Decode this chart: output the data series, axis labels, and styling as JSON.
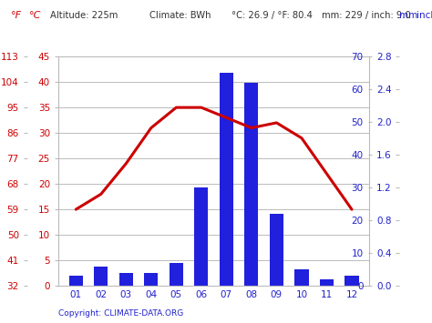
{
  "months": [
    "01",
    "02",
    "03",
    "04",
    "05",
    "06",
    "07",
    "08",
    "09",
    "10",
    "11",
    "12"
  ],
  "precip_mm": [
    3,
    6,
    4,
    4,
    7,
    30,
    65,
    62,
    22,
    5,
    2,
    3
  ],
  "temp_c": [
    15,
    18,
    24,
    31,
    35,
    35,
    33,
    31,
    32,
    29,
    22,
    15
  ],
  "bar_color": "#2020dd",
  "line_color": "#cc0000",
  "red_color": "#cc0000",
  "blue_color": "#2020cc",
  "grid_color": "#bbbbbb",
  "bg_color": "#ffffff",
  "footer": "Copyright: CLIMATE-DATA.ORG",
  "temp_c_ticks": [
    0,
    5,
    10,
    15,
    20,
    25,
    30,
    35,
    40,
    45
  ],
  "temp_f_ticks": [
    32,
    41,
    50,
    59,
    68,
    77,
    86,
    95,
    104,
    113
  ],
  "precip_mm_ticks": [
    0,
    10,
    20,
    30,
    40,
    50,
    60,
    70
  ],
  "precip_inch_ticks": [
    0.0,
    0.4,
    0.8,
    1.2,
    1.6,
    2.0,
    2.4,
    2.8
  ],
  "temp_c_max": 45,
  "temp_c_min": 0,
  "precip_max": 70,
  "precip_min": 0
}
